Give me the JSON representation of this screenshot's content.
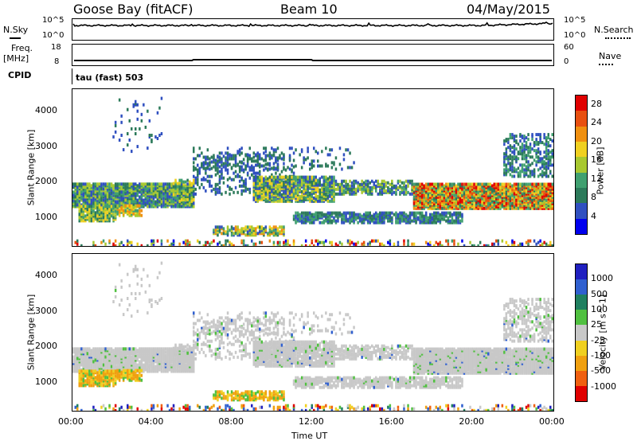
{
  "header": {
    "station": "Goose Bay (fitACF)",
    "beam": "Beam 10",
    "date": "04/May/2015"
  },
  "noise_panel": {
    "left_label": "N.Sky",
    "left_top": "10^5",
    "left_bottom": "10^0",
    "right_label": "N.Search",
    "right_top": "10^5",
    "right_bottom": "10^0"
  },
  "freq_panel": {
    "left_label_1": "Freq.",
    "left_label_2": "[MHz]",
    "left_top": "18",
    "left_bottom": "8",
    "right_label": "Nave",
    "right_top": "60",
    "right_bottom": "0"
  },
  "cpid": {
    "label": "CPID",
    "value": "tau (fast) 503"
  },
  "colors": {
    "power": [
      "#0000ee",
      "#3050c0",
      "#2c7a5a",
      "#40a070",
      "#a8c830",
      "#f0d020",
      "#f09010",
      "#e85010",
      "#e00000"
    ],
    "velocity": [
      "#2020c0",
      "#3060d0",
      "#208060",
      "#50c040",
      "#c8c8c8",
      "#f0d020",
      "#f0a010",
      "#f06010",
      "#e00000"
    ]
  },
  "chart_data": [
    {
      "type": "heatmap",
      "title": "",
      "ylabel": "Slant Range [km]",
      "ylim": [
        200,
        4600
      ],
      "yticks": [
        "1000",
        "2000",
        "3000",
        "4000"
      ],
      "colorbar_label": "Power [dB]",
      "colorbar_ticks": [
        "4",
        "8",
        "12",
        "16",
        "20",
        "24",
        "28"
      ],
      "colorbar_range": [
        0,
        30
      ]
    },
    {
      "type": "heatmap",
      "title": "",
      "ylabel": "Slant Range [km]",
      "xlabel": "Time UT",
      "xlim_hours": [
        0,
        24
      ],
      "xticks": [
        "00:00",
        "04:00",
        "08:00",
        "12:00",
        "16:00",
        "20:00",
        "00:00"
      ],
      "ylim": [
        200,
        4600
      ],
      "yticks": [
        "1000",
        "2000",
        "3000",
        "4000"
      ],
      "colorbar_label": "Velocity [m s^-1]",
      "colorbar_ticks": [
        "1000",
        "500",
        "100",
        "25",
        "-25",
        "-100",
        "-500",
        "-1000"
      ],
      "colorbar_range": [
        -1000,
        1000
      ]
    }
  ]
}
